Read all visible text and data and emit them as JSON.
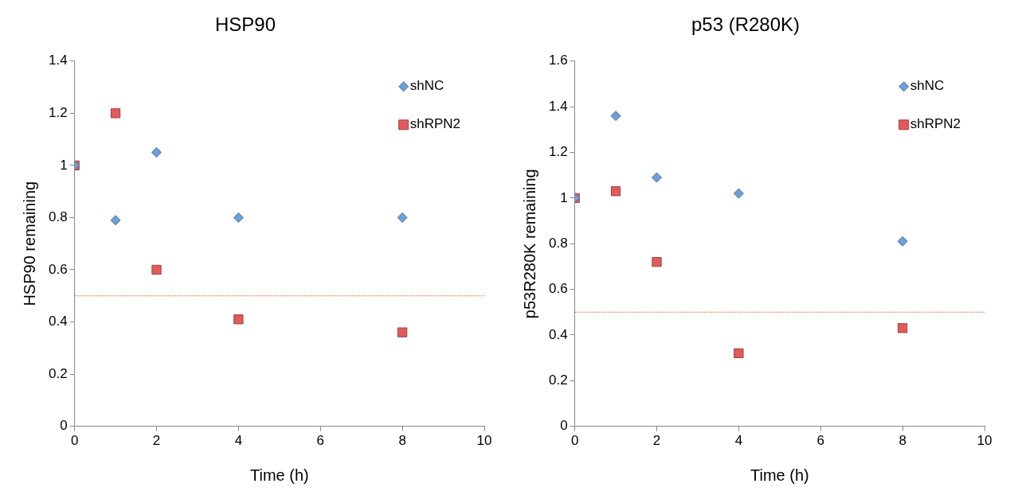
{
  "chart_data": [
    {
      "type": "scatter",
      "title": "HSP90",
      "xlabel": "Time (h)",
      "ylabel": "HSP90 remaining",
      "xlim": [
        0,
        10
      ],
      "xticks": [
        0,
        2,
        4,
        6,
        8,
        10
      ],
      "ylim": [
        0,
        1.4
      ],
      "yticks": [
        0,
        0.2,
        0.4,
        0.6,
        0.8,
        1,
        1.2,
        1.4
      ],
      "grid": false,
      "legend": "top right",
      "series": [
        {
          "name": "shNC",
          "color": "#6f9fd8",
          "marker": "diamond",
          "x": [
            0,
            1,
            2,
            4,
            8
          ],
          "values": [
            1,
            0.79,
            1.05,
            0.8,
            0.8
          ]
        },
        {
          "name": "shRPN2",
          "color": "#e05c5c",
          "marker": "square",
          "x": [
            0,
            1,
            2,
            4,
            8
          ],
          "values": [
            1,
            1.2,
            0.6,
            0.41,
            0.36
          ]
        }
      ],
      "ref_lines": [
        {
          "axis": "y",
          "value": 0.5,
          "color": "#d9542e",
          "line_style": "dotted"
        }
      ]
    },
    {
      "type": "scatter",
      "title": "p53 (R280K)",
      "xlabel": "Time (h)",
      "ylabel": "p53R280K remaining",
      "xlim": [
        0,
        10
      ],
      "xticks": [
        0,
        2,
        4,
        6,
        8,
        10
      ],
      "ylim": [
        0,
        1.6
      ],
      "yticks": [
        0,
        0.2,
        0.4,
        0.6,
        0.8,
        1,
        1.2,
        1.4,
        1.6
      ],
      "grid": false,
      "legend": "top right",
      "series": [
        {
          "name": "shNC",
          "color": "#6f9fd8",
          "marker": "diamond",
          "x": [
            0,
            1,
            2,
            4,
            8
          ],
          "values": [
            1,
            1.36,
            1.09,
            1.02,
            0.81
          ]
        },
        {
          "name": "shRPN2",
          "color": "#e05c5c",
          "marker": "square",
          "x": [
            0,
            1,
            2,
            4,
            8
          ],
          "values": [
            1,
            1.03,
            0.72,
            0.32,
            0.43
          ]
        }
      ],
      "ref_lines": [
        {
          "axis": "y",
          "value": 0.5,
          "color": "#d9542e",
          "line_style": "dotted"
        }
      ]
    }
  ]
}
